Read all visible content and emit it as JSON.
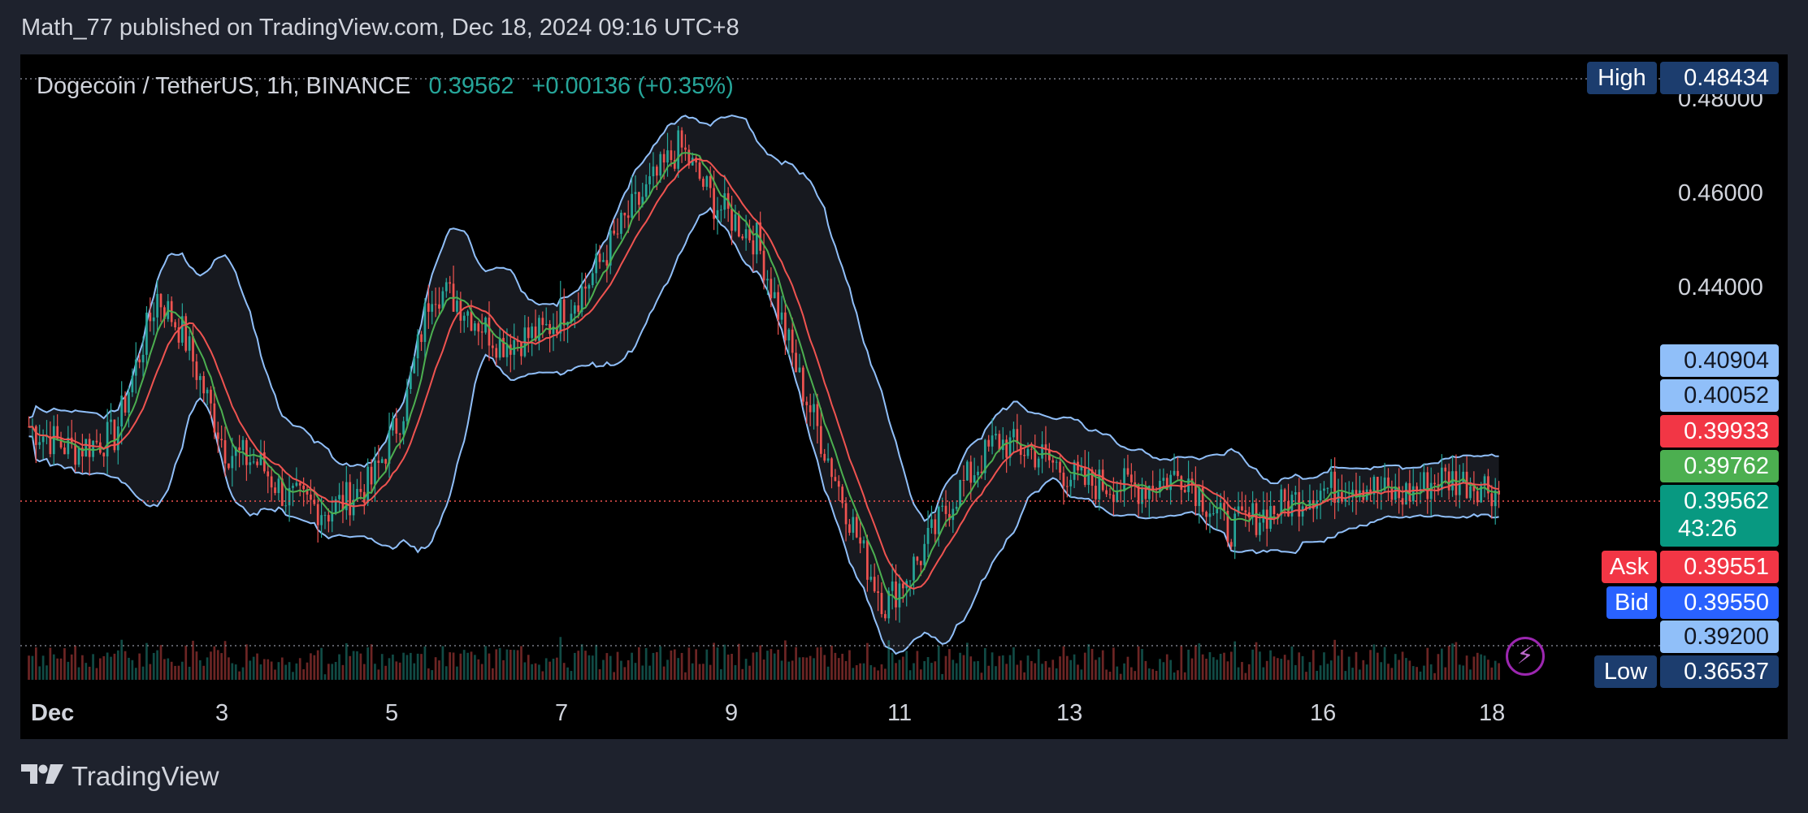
{
  "header": {
    "published_text": "Math_77 published on TradingView.com, Dec 18, 2024 09:16 UTC+8"
  },
  "legend": {
    "symbol": "Dogecoin / TetherUS, 1h, BINANCE",
    "price": "0.39562",
    "change": "+0.00136 (+0.35%)"
  },
  "price_axis": {
    "ticks": [
      "0.48000",
      "0.46000",
      "0.44000"
    ],
    "high_label": "High",
    "high_value": "0.48434",
    "low_label": "Low",
    "low_value": "0.36537",
    "ask_label": "Ask",
    "ask_value": "0.39551",
    "bid_label": "Bid",
    "bid_value": "0.39550",
    "tags": [
      {
        "value": "0.40904",
        "color": "#90bff9",
        "text_color": "#131722"
      },
      {
        "value": "0.40052",
        "color": "#90bff9",
        "text_color": "#131722"
      },
      {
        "value": "0.39933",
        "color": "#f23645",
        "text_color": "#ffffff"
      },
      {
        "value": "0.39762",
        "color": "#4caf50",
        "text_color": "#ffffff"
      },
      {
        "value": "0.39562",
        "color": "#089981",
        "text_color": "#ffffff"
      },
      {
        "value": "0.39200",
        "color": "#90bff9",
        "text_color": "#131722"
      }
    ],
    "countdown": "43:26"
  },
  "time_axis": {
    "labels": [
      "Dec",
      "3",
      "5",
      "7",
      "9",
      "11",
      "13",
      "16",
      "18"
    ]
  },
  "footer": {
    "brand": "TradingView"
  },
  "colors": {
    "up": "#26a69a",
    "down": "#ef5350",
    "band": "#90bff9",
    "ma_fast": "#4caf50",
    "ma_slow": "#ef5350",
    "background": "#000000",
    "frame": "#1e222d"
  },
  "chart_data": {
    "type": "candlestick",
    "title": "Dogecoin / TetherUS, 1h, BINANCE",
    "x_range": [
      "Dec 1",
      "Dec 18"
    ],
    "ylim": [
      0.355,
      0.487
    ],
    "y_ticks": [
      0.44,
      0.46,
      0.48
    ],
    "high": 0.48434,
    "low": 0.36537,
    "last": 0.39562,
    "indicators": [
      "Bollinger Bands",
      "Moving Average (fast)",
      "Moving Average (slow)",
      "Volume"
    ],
    "price_path": [
      {
        "day": 1.0,
        "close": 0.41
      },
      {
        "day": 1.5,
        "close": 0.405
      },
      {
        "day": 2.0,
        "close": 0.408
      },
      {
        "day": 2.5,
        "close": 0.438
      },
      {
        "day": 2.8,
        "close": 0.43
      },
      {
        "day": 3.3,
        "close": 0.405
      },
      {
        "day": 3.7,
        "close": 0.402
      },
      {
        "day": 4.0,
        "close": 0.395
      },
      {
        "day": 4.5,
        "close": 0.392
      },
      {
        "day": 5.0,
        "close": 0.398
      },
      {
        "day": 5.4,
        "close": 0.415
      },
      {
        "day": 5.7,
        "close": 0.44
      },
      {
        "day": 6.0,
        "close": 0.437
      },
      {
        "day": 6.5,
        "close": 0.428
      },
      {
        "day": 7.0,
        "close": 0.43
      },
      {
        "day": 7.5,
        "close": 0.44
      },
      {
        "day": 8.0,
        "close": 0.455
      },
      {
        "day": 8.6,
        "close": 0.47
      },
      {
        "day": 9.0,
        "close": 0.458
      },
      {
        "day": 9.5,
        "close": 0.45
      },
      {
        "day": 10.0,
        "close": 0.42
      },
      {
        "day": 10.4,
        "close": 0.4
      },
      {
        "day": 10.8,
        "close": 0.38
      },
      {
        "day": 11.0,
        "close": 0.372
      },
      {
        "day": 11.4,
        "close": 0.382
      },
      {
        "day": 11.8,
        "close": 0.395
      },
      {
        "day": 12.3,
        "close": 0.407
      },
      {
        "day": 12.8,
        "close": 0.404
      },
      {
        "day": 13.3,
        "close": 0.398
      },
      {
        "day": 14.0,
        "close": 0.397
      },
      {
        "day": 14.5,
        "close": 0.4
      },
      {
        "day": 15.0,
        "close": 0.388
      },
      {
        "day": 15.5,
        "close": 0.392
      },
      {
        "day": 16.0,
        "close": 0.396
      },
      {
        "day": 16.5,
        "close": 0.398
      },
      {
        "day": 17.0,
        "close": 0.395
      },
      {
        "day": 17.5,
        "close": 0.399
      },
      {
        "day": 18.0,
        "close": 0.3976
      },
      {
        "day": 18.2,
        "close": 0.39562
      }
    ]
  }
}
